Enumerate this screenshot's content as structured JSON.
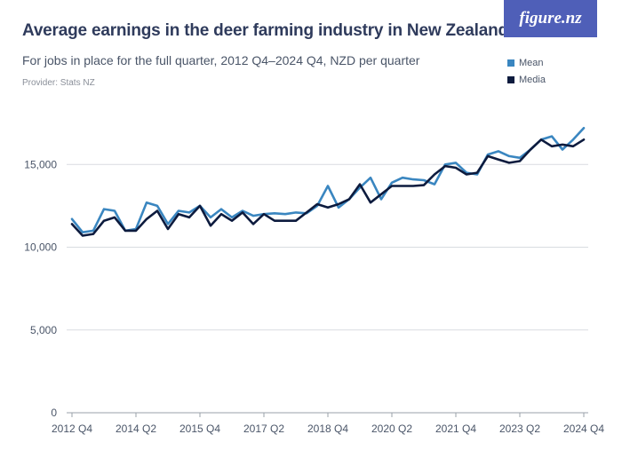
{
  "header": {
    "title": "Average earnings in the deer farming industry in New Zealand",
    "subtitle": "For jobs in place for the full quarter, 2012 Q4–2024 Q4, NZD per quarter",
    "provider": "Provider: Stats NZ",
    "logo_text": "figure.nz"
  },
  "colors": {
    "mean": "#3a86c0",
    "median": "#0d1b3e",
    "logo_bg": "#4f5fb8",
    "grid": "#d9dce1"
  },
  "chart_data": {
    "type": "line",
    "x": [
      "2012 Q4",
      "2013 Q1",
      "2013 Q2",
      "2013 Q3",
      "2013 Q4",
      "2014 Q1",
      "2014 Q2",
      "2014 Q3",
      "2014 Q4",
      "2015 Q1",
      "2015 Q2",
      "2015 Q3",
      "2015 Q4",
      "2016 Q1",
      "2016 Q2",
      "2016 Q3",
      "2016 Q4",
      "2017 Q1",
      "2017 Q2",
      "2017 Q3",
      "2017 Q4",
      "2018 Q1",
      "2018 Q2",
      "2018 Q3",
      "2018 Q4",
      "2019 Q1",
      "2019 Q2",
      "2019 Q3",
      "2019 Q4",
      "2020 Q1",
      "2020 Q2",
      "2020 Q3",
      "2020 Q4",
      "2021 Q1",
      "2021 Q2",
      "2021 Q3",
      "2021 Q4",
      "2022 Q1",
      "2022 Q2",
      "2022 Q3",
      "2022 Q4",
      "2023 Q1",
      "2023 Q2",
      "2023 Q3",
      "2023 Q4",
      "2024 Q1",
      "2024 Q2",
      "2024 Q3",
      "2024 Q4"
    ],
    "series": [
      {
        "name": "Mean",
        "values": [
          11700,
          10900,
          11000,
          12300,
          12200,
          11000,
          11100,
          12700,
          12500,
          11400,
          12200,
          12100,
          12500,
          11800,
          12300,
          11800,
          12200,
          11900,
          12000,
          12050,
          12000,
          12100,
          12050,
          12500,
          13700,
          12400,
          12900,
          13600,
          14200,
          12900,
          13900,
          14200,
          14100,
          14050,
          13800,
          15000,
          15100,
          14500,
          14400,
          15600,
          15800,
          15500,
          15400,
          15900,
          16500,
          16700,
          15900,
          16500,
          17200
        ]
      },
      {
        "name": "Media",
        "values": [
          11400,
          10700,
          10800,
          11600,
          11800,
          11000,
          11000,
          11700,
          12200,
          11100,
          12000,
          11800,
          12500,
          11300,
          12000,
          11600,
          12100,
          11400,
          12000,
          11600,
          11600,
          11600,
          12100,
          12600,
          12400,
          12600,
          12900,
          13800,
          12700,
          13200,
          13700,
          13700,
          13700,
          13750,
          14400,
          14900,
          14800,
          14400,
          14500,
          15500,
          15300,
          15100,
          15200,
          15900,
          16500,
          16100,
          16200,
          16100,
          16500
        ]
      }
    ],
    "x_tick_labels": [
      "2012 Q4",
      "2014 Q2",
      "2015 Q4",
      "2017 Q2",
      "2018 Q4",
      "2020 Q2",
      "2021 Q4",
      "2023 Q2",
      "2024 Q4"
    ],
    "y_ticks": [
      0,
      5000,
      10000,
      15000
    ],
    "y_tick_labels": [
      "0",
      "5,000",
      "10,000",
      "15,000"
    ],
    "ylim": [
      0,
      18500
    ],
    "grid": true,
    "legend_position": "top-right"
  }
}
